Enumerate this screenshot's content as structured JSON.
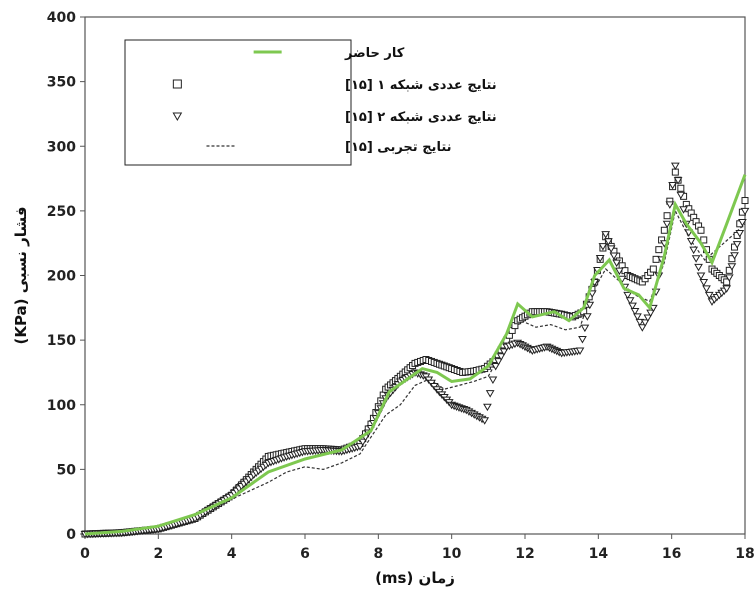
{
  "chart_data": {
    "type": "line",
    "xlabel": "زمان (ms)",
    "ylabel": "فشار نسبی (KPa)",
    "xlim": [
      0,
      18
    ],
    "ylim": [
      0,
      400
    ],
    "x_ticks": [
      0,
      2,
      4,
      6,
      8,
      10,
      12,
      14,
      16,
      18
    ],
    "y_ticks": [
      0,
      50,
      100,
      150,
      200,
      250,
      300,
      350,
      400
    ],
    "grid": false,
    "legend_position": "top-left",
    "series": [
      {
        "name": "کار حاضر",
        "style": "line",
        "color": "#7ec850",
        "points": [
          [
            0,
            0
          ],
          [
            1,
            2
          ],
          [
            2,
            6
          ],
          [
            3,
            15
          ],
          [
            4,
            28
          ],
          [
            5,
            48
          ],
          [
            6,
            58
          ],
          [
            7,
            65
          ],
          [
            7.8,
            80
          ],
          [
            8.3,
            110
          ],
          [
            8.8,
            120
          ],
          [
            9.2,
            128
          ],
          [
            9.6,
            125
          ],
          [
            10,
            118
          ],
          [
            10.5,
            120
          ],
          [
            11,
            130
          ],
          [
            11.5,
            155
          ],
          [
            11.8,
            178
          ],
          [
            12.2,
            168
          ],
          [
            12.8,
            172
          ],
          [
            13.2,
            165
          ],
          [
            13.6,
            175
          ],
          [
            13.9,
            200
          ],
          [
            14.3,
            212
          ],
          [
            14.7,
            190
          ],
          [
            15.1,
            185
          ],
          [
            15.4,
            175
          ],
          [
            15.8,
            215
          ],
          [
            16.1,
            255
          ],
          [
            16.4,
            240
          ],
          [
            16.8,
            225
          ],
          [
            17.1,
            210
          ],
          [
            17.5,
            240
          ],
          [
            18,
            278
          ]
        ]
      },
      {
        "name": "نتایج عددی شبکه ۱ [۱۵]",
        "style": "marker-square",
        "color": "#222222",
        "points": [
          [
            0,
            0
          ],
          [
            1,
            1
          ],
          [
            2,
            4
          ],
          [
            3,
            12
          ],
          [
            4,
            30
          ],
          [
            4.6,
            48
          ],
          [
            5,
            60
          ],
          [
            5.5,
            63
          ],
          [
            6,
            66
          ],
          [
            6.5,
            66
          ],
          [
            7,
            65
          ],
          [
            7.5,
            70
          ],
          [
            7.8,
            85
          ],
          [
            8.2,
            112
          ],
          [
            8.6,
            122
          ],
          [
            9,
            132
          ],
          [
            9.3,
            135
          ],
          [
            9.6,
            132
          ],
          [
            10,
            128
          ],
          [
            10.3,
            125
          ],
          [
            10.6,
            126
          ],
          [
            10.9,
            128
          ],
          [
            11.2,
            135
          ],
          [
            11.5,
            150
          ],
          [
            11.8,
            165
          ],
          [
            12.2,
            172
          ],
          [
            12.6,
            172
          ],
          [
            13,
            170
          ],
          [
            13.3,
            168
          ],
          [
            13.6,
            172
          ],
          [
            13.9,
            195
          ],
          [
            14.2,
            230
          ],
          [
            14.5,
            215
          ],
          [
            14.8,
            200
          ],
          [
            15.2,
            195
          ],
          [
            15.5,
            205
          ],
          [
            15.8,
            235
          ],
          [
            16.1,
            280
          ],
          [
            16.4,
            255
          ],
          [
            16.8,
            235
          ],
          [
            17.1,
            205
          ],
          [
            17.5,
            195
          ],
          [
            18,
            258
          ]
        ]
      },
      {
        "name": "نتایج عددی شبکه ۲ [۱۵]",
        "style": "marker-triangle",
        "color": "#222222",
        "points": [
          [
            0,
            0
          ],
          [
            1,
            1
          ],
          [
            2,
            4
          ],
          [
            3,
            12
          ],
          [
            4,
            30
          ],
          [
            4.6,
            46
          ],
          [
            5,
            55
          ],
          [
            5.5,
            60
          ],
          [
            6,
            64
          ],
          [
            6.5,
            65
          ],
          [
            7,
            64
          ],
          [
            7.5,
            68
          ],
          [
            7.8,
            82
          ],
          [
            8.2,
            105
          ],
          [
            8.6,
            118
          ],
          [
            9,
            125
          ],
          [
            9.3,
            122
          ],
          [
            9.6,
            112
          ],
          [
            10,
            100
          ],
          [
            10.4,
            96
          ],
          [
            10.9,
            88
          ],
          [
            11.2,
            130
          ],
          [
            11.5,
            145
          ],
          [
            11.8,
            148
          ],
          [
            12.2,
            142
          ],
          [
            12.6,
            145
          ],
          [
            13,
            140
          ],
          [
            13.5,
            142
          ],
          [
            13.9,
            195
          ],
          [
            14.2,
            232
          ],
          [
            14.5,
            210
          ],
          [
            14.8,
            185
          ],
          [
            15.2,
            160
          ],
          [
            15.5,
            175
          ],
          [
            15.8,
            225
          ],
          [
            16.1,
            285
          ],
          [
            16.4,
            240
          ],
          [
            16.8,
            200
          ],
          [
            17.1,
            180
          ],
          [
            17.5,
            190
          ],
          [
            18,
            250
          ]
        ]
      },
      {
        "name": "نتایج تجربی [۱۵]",
        "style": "dashed",
        "color": "#333333",
        "points": [
          [
            0,
            0
          ],
          [
            1,
            1
          ],
          [
            2,
            4
          ],
          [
            3,
            14
          ],
          [
            4,
            27
          ],
          [
            5,
            40
          ],
          [
            5.5,
            48
          ],
          [
            6,
            52
          ],
          [
            6.5,
            50
          ],
          [
            7,
            55
          ],
          [
            7.5,
            62
          ],
          [
            7.8,
            75
          ],
          [
            8.2,
            92
          ],
          [
            8.6,
            100
          ],
          [
            9,
            115
          ],
          [
            9.4,
            120
          ],
          [
            9.8,
            112
          ],
          [
            10.2,
            115
          ],
          [
            10.6,
            118
          ],
          [
            11,
            122
          ],
          [
            11.5,
            148
          ],
          [
            11.9,
            165
          ],
          [
            12.3,
            160
          ],
          [
            12.7,
            162
          ],
          [
            13.1,
            158
          ],
          [
            13.5,
            160
          ],
          [
            13.8,
            185
          ],
          [
            14.2,
            205
          ],
          [
            14.6,
            195
          ],
          [
            15,
            185
          ],
          [
            15.4,
            180
          ],
          [
            15.8,
            210
          ],
          [
            16.1,
            250
          ],
          [
            16.5,
            228
          ],
          [
            16.9,
            212
          ],
          [
            17.3,
            222
          ],
          [
            17.7,
            232
          ],
          [
            18,
            240
          ]
        ]
      }
    ]
  }
}
